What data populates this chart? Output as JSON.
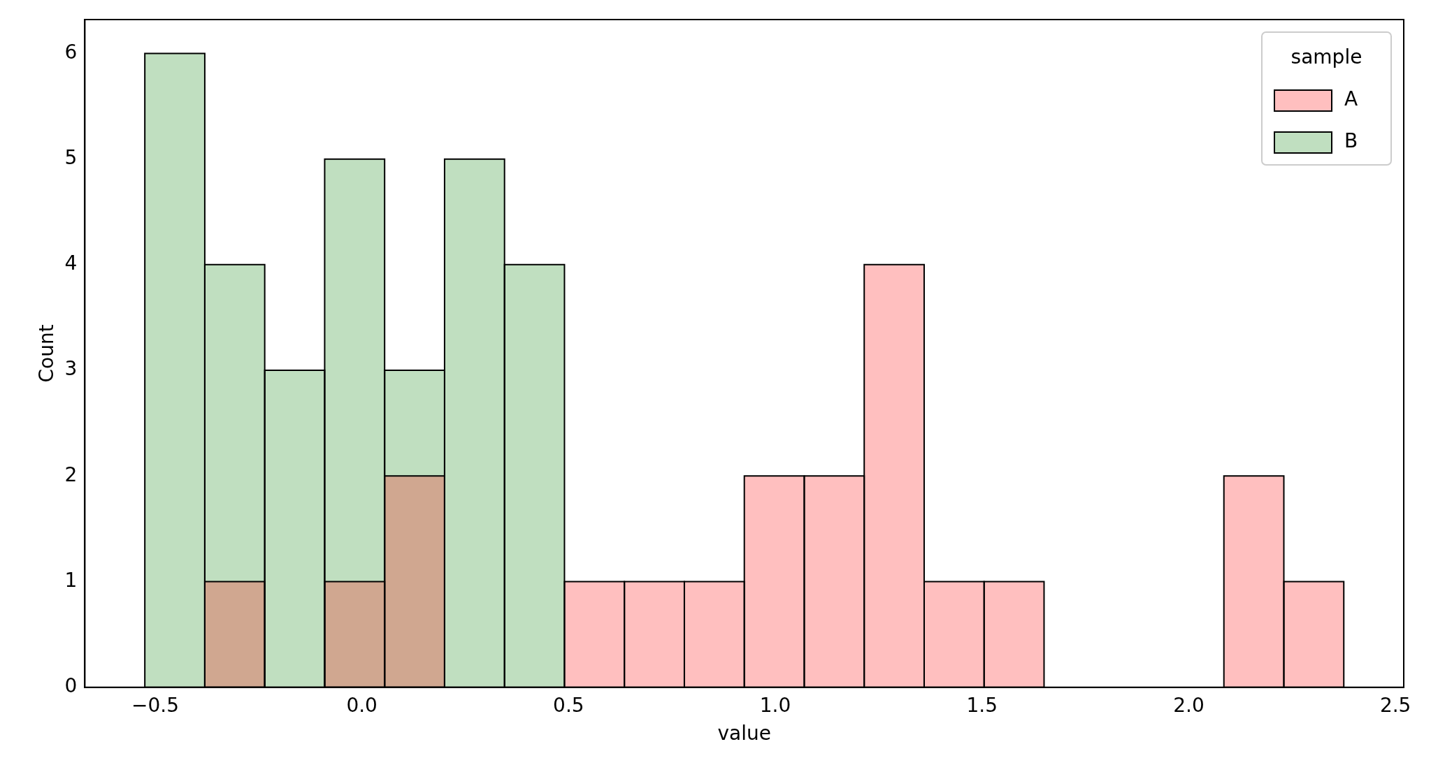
{
  "chart_data": {
    "type": "histogram",
    "xlabel": "value",
    "ylabel": "Count",
    "legend_title": "sample",
    "legend": "top right",
    "grid": false,
    "bins": [
      -0.525,
      -0.38,
      -0.235,
      -0.09,
      0.055,
      0.2,
      0.345,
      0.49,
      0.635,
      0.78,
      0.925,
      1.07,
      1.215,
      1.36,
      1.505,
      1.65,
      1.795,
      1.94,
      2.085,
      2.23,
      2.375
    ],
    "series": [
      {
        "name": "A",
        "color": "#ffbfbf",
        "values": [
          0,
          1,
          0,
          1,
          2,
          0,
          0,
          1,
          1,
          1,
          2,
          2,
          4,
          1,
          1,
          0,
          0,
          0,
          2,
          1
        ]
      },
      {
        "name": "B",
        "color": "#c0dfc0",
        "values": [
          6,
          4,
          3,
          5,
          3,
          5,
          4,
          0,
          0,
          0,
          0,
          0,
          0,
          0,
          0,
          0,
          0,
          0,
          0,
          0
        ]
      }
    ],
    "xlim": [
      -0.67,
      2.52
    ],
    "ylim": [
      0,
      6.32
    ],
    "xticks": [
      {
        "value": -0.5,
        "label": "−0.5"
      },
      {
        "value": 0,
        "label": "0.0"
      },
      {
        "value": 0.5,
        "label": "0.5"
      },
      {
        "value": 1,
        "label": "1.0"
      },
      {
        "value": 1.5,
        "label": "1.5"
      },
      {
        "value": 2,
        "label": "2.0"
      },
      {
        "value": 2.5,
        "label": "2.5"
      }
    ],
    "yticks": [
      0,
      1,
      2,
      3,
      4,
      5,
      6
    ]
  }
}
